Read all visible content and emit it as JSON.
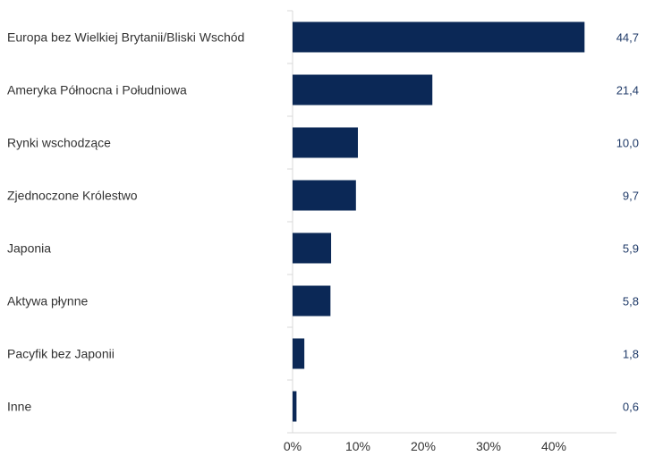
{
  "colors": {
    "bar": "#0b2856",
    "value_text": "#1f3a68",
    "axis": "#d9d9d9",
    "label_text": "#333333"
  },
  "chart_data": {
    "type": "bar",
    "orientation": "horizontal",
    "categories": [
      "Europa bez Wielkiej Brytanii/Bliski Wschód",
      "Ameryka Północna i Południowa",
      "Rynki wschodzące",
      "Zjednoczone Królestwo",
      "Japonia",
      "Aktywa płynne",
      "Pacyfik bez Japonii",
      "Inne"
    ],
    "values": [
      44.7,
      21.4,
      10.0,
      9.7,
      5.9,
      5.8,
      1.8,
      0.6
    ],
    "value_labels": [
      "44,7",
      "21,4",
      "10,0",
      "9,7",
      "5,9",
      "5,8",
      "1,8",
      "0,6"
    ],
    "x_ticks": [
      0,
      10,
      20,
      30,
      40
    ],
    "x_tick_labels": [
      "0%",
      "10%",
      "20%",
      "30%",
      "40%"
    ],
    "xlim": [
      0,
      50
    ],
    "grid": false,
    "legend": "none"
  }
}
